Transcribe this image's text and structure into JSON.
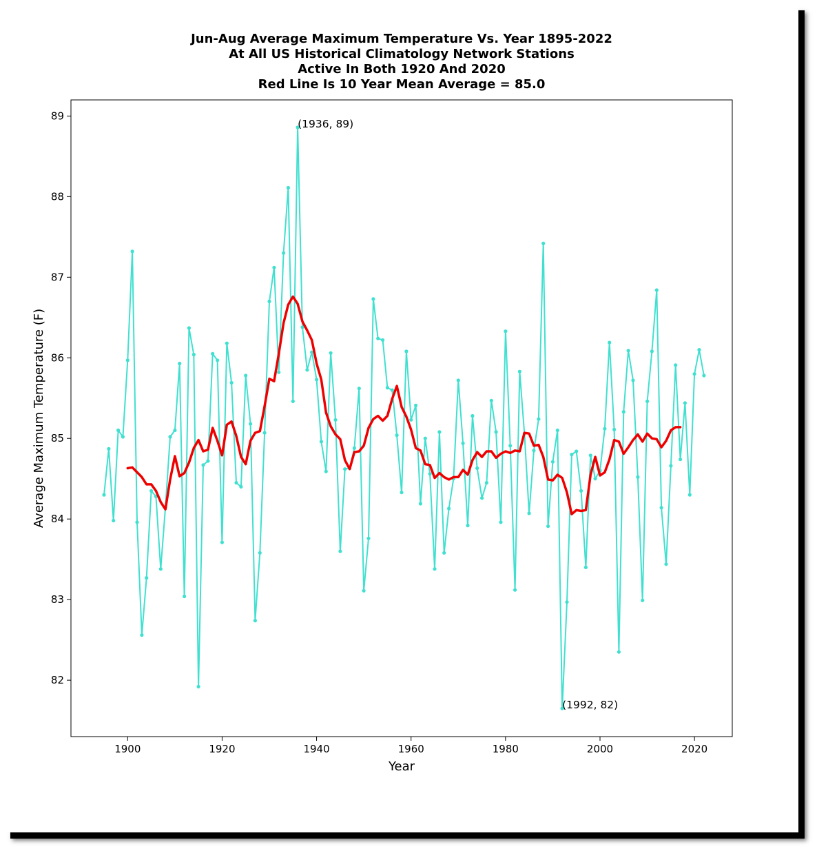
{
  "chart_data": {
    "type": "line",
    "title_lines": [
      "Jun-Aug Average Maximum Temperature Vs. Year 1895-2022",
      "At All US Historical Climatology Network Stations",
      "Active In Both 1920 And 2020",
      "Red Line Is 10 Year Mean  Average = 85.0"
    ],
    "xlabel": "Year",
    "ylabel": "Average Maximum Temperature (F)",
    "xlim": [
      1888,
      2028
    ],
    "ylim": [
      81.3,
      89.2
    ],
    "xticks": [
      1900,
      1920,
      1940,
      1960,
      1980,
      2000,
      2020
    ],
    "yticks": [
      82,
      83,
      84,
      85,
      86,
      87,
      88,
      89
    ],
    "grid": false,
    "colors": {
      "series": "#40e0d0",
      "mean": "#ee0000"
    },
    "series": [
      {
        "x": [
          1895,
          1896,
          1897,
          1898,
          1899,
          1900,
          1901,
          1902,
          1903,
          1904,
          1905,
          1906,
          1907,
          1908,
          1909,
          1910,
          1911,
          1912,
          1913,
          1914,
          1915,
          1916,
          1917,
          1918,
          1919,
          1920,
          1921,
          1922,
          1923,
          1924,
          1925,
          1926,
          1927,
          1928,
          1929,
          1930,
          1931,
          1932,
          1933,
          1934,
          1935,
          1936,
          1937,
          1938,
          1939,
          1940,
          1941,
          1942,
          1943,
          1944,
          1945,
          1946,
          1947,
          1948,
          1949,
          1950,
          1951,
          1952,
          1953,
          1954,
          1955,
          1956,
          1957,
          1958,
          1959,
          1960,
          1961,
          1962,
          1963,
          1964,
          1965,
          1966,
          1967,
          1968,
          1969,
          1970,
          1971,
          1972,
          1973,
          1974,
          1975,
          1976,
          1977,
          1978,
          1979,
          1980,
          1981,
          1982,
          1983,
          1984,
          1985,
          1986,
          1987,
          1988,
          1989,
          1990,
          1991,
          1992,
          1993,
          1994,
          1995,
          1996,
          1997,
          1998,
          1999,
          2000,
          2001,
          2002,
          2003,
          2004,
          2005,
          2006,
          2007,
          2008,
          2009,
          2010,
          2011,
          2012,
          2013,
          2014,
          2015,
          2016,
          2017,
          2018,
          2019,
          2020,
          2021,
          2022
        ],
        "values": [
          84.3,
          84.87,
          83.98,
          85.1,
          85.02,
          85.97,
          87.32,
          83.96,
          82.56,
          83.27,
          84.35,
          84.28,
          83.38,
          84.14,
          85.02,
          85.1,
          85.93,
          83.04,
          86.37,
          86.04,
          81.92,
          84.67,
          84.72,
          86.05,
          85.97,
          83.71,
          86.18,
          85.69,
          84.45,
          84.4,
          85.78,
          85.18,
          82.74,
          83.58,
          85.07,
          86.7,
          87.12,
          85.82,
          87.3,
          88.11,
          85.46,
          88.86,
          86.38,
          85.85,
          86.07,
          85.73,
          84.96,
          84.59,
          86.06,
          85.23,
          83.6,
          84.62,
          84.63,
          84.88,
          85.62,
          83.11,
          83.76,
          86.73,
          86.24,
          86.22,
          85.63,
          85.6,
          85.04,
          84.33,
          86.08,
          85.23,
          85.41,
          84.19,
          85.0,
          84.56,
          83.38,
          85.08,
          83.58,
          84.13,
          84.5,
          85.72,
          84.94,
          83.92,
          85.28,
          84.63,
          84.26,
          84.45,
          85.47,
          85.08,
          83.96,
          86.33,
          84.91,
          83.12,
          85.83,
          85.06,
          84.07,
          84.85,
          85.24,
          87.42,
          83.91,
          84.71,
          85.1,
          81.65,
          82.97,
          84.8,
          84.84,
          84.35,
          83.4,
          84.79,
          84.5,
          84.6,
          85.12,
          86.19,
          85.11,
          82.35,
          85.33,
          86.09,
          85.72,
          84.52,
          82.99,
          85.46,
          86.08,
          86.84,
          84.14,
          83.44,
          84.66,
          85.91,
          84.74,
          85.44,
          84.3,
          85.8,
          86.1,
          85.78
        ]
      },
      {
        "name": "10 Year Mean",
        "x": [
          1900,
          1901,
          1902,
          1903,
          1904,
          1905,
          1906,
          1907,
          1908,
          1909,
          1910,
          1911,
          1912,
          1913,
          1914,
          1915,
          1916,
          1917,
          1918,
          1919,
          1920,
          1921,
          1922,
          1923,
          1924,
          1925,
          1926,
          1927,
          1928,
          1929,
          1930,
          1931,
          1932,
          1933,
          1934,
          1935,
          1936,
          1937,
          1938,
          1939,
          1940,
          1941,
          1942,
          1943,
          1944,
          1945,
          1946,
          1947,
          1948,
          1949,
          1950,
          1951,
          1952,
          1953,
          1954,
          1955,
          1956,
          1957,
          1958,
          1959,
          1960,
          1961,
          1962,
          1963,
          1964,
          1965,
          1966,
          1967,
          1968,
          1969,
          1970,
          1971,
          1972,
          1973,
          1974,
          1975,
          1976,
          1977,
          1978,
          1979,
          1980,
          1981,
          1982,
          1983,
          1984,
          1985,
          1986,
          1987,
          1988,
          1989,
          1990,
          1991,
          1992,
          1993,
          1994,
          1995,
          1996,
          1997,
          1998,
          1999,
          2000,
          2001,
          2002,
          2003,
          2004,
          2005,
          2006,
          2007,
          2008,
          2009,
          2010,
          2011,
          2012,
          2013,
          2014,
          2015,
          2016,
          2017
        ],
        "values": [
          84.63,
          84.64,
          84.58,
          84.52,
          84.43,
          84.43,
          84.35,
          84.21,
          84.12,
          84.49,
          84.78,
          84.53,
          84.57,
          84.7,
          84.88,
          84.98,
          84.84,
          84.86,
          85.13,
          84.97,
          84.79,
          85.17,
          85.21,
          85.03,
          84.77,
          84.68,
          84.97,
          85.07,
          85.09,
          85.4,
          85.74,
          85.71,
          86.05,
          86.43,
          86.66,
          86.76,
          86.67,
          86.45,
          86.34,
          86.22,
          85.93,
          85.73,
          85.32,
          85.15,
          85.05,
          84.99,
          84.73,
          84.62,
          84.83,
          84.84,
          84.91,
          85.13,
          85.24,
          85.28,
          85.22,
          85.28,
          85.49,
          85.65,
          85.39,
          85.27,
          85.11,
          84.88,
          84.85,
          84.68,
          84.67,
          84.51,
          84.57,
          84.52,
          84.49,
          84.52,
          84.52,
          84.61,
          84.55,
          84.73,
          84.83,
          84.77,
          84.84,
          84.84,
          84.76,
          84.81,
          84.84,
          84.82,
          84.85,
          84.84,
          85.07,
          85.06,
          84.91,
          84.92,
          84.77,
          84.49,
          84.48,
          84.55,
          84.51,
          84.33,
          84.06,
          84.11,
          84.1,
          84.11,
          84.55,
          84.77,
          84.54,
          84.58,
          84.74,
          84.98,
          84.96,
          84.81,
          84.89,
          84.98,
          85.05,
          84.96,
          85.06,
          85.0,
          84.99,
          84.89,
          84.97,
          85.1,
          85.14,
          85.14
        ]
      }
    ],
    "annotations": [
      {
        "text": "(1936, 89)",
        "x": 1936,
        "y": 88.86
      },
      {
        "text": "(1992, 82)",
        "x": 1992,
        "y": 81.65
      }
    ]
  }
}
